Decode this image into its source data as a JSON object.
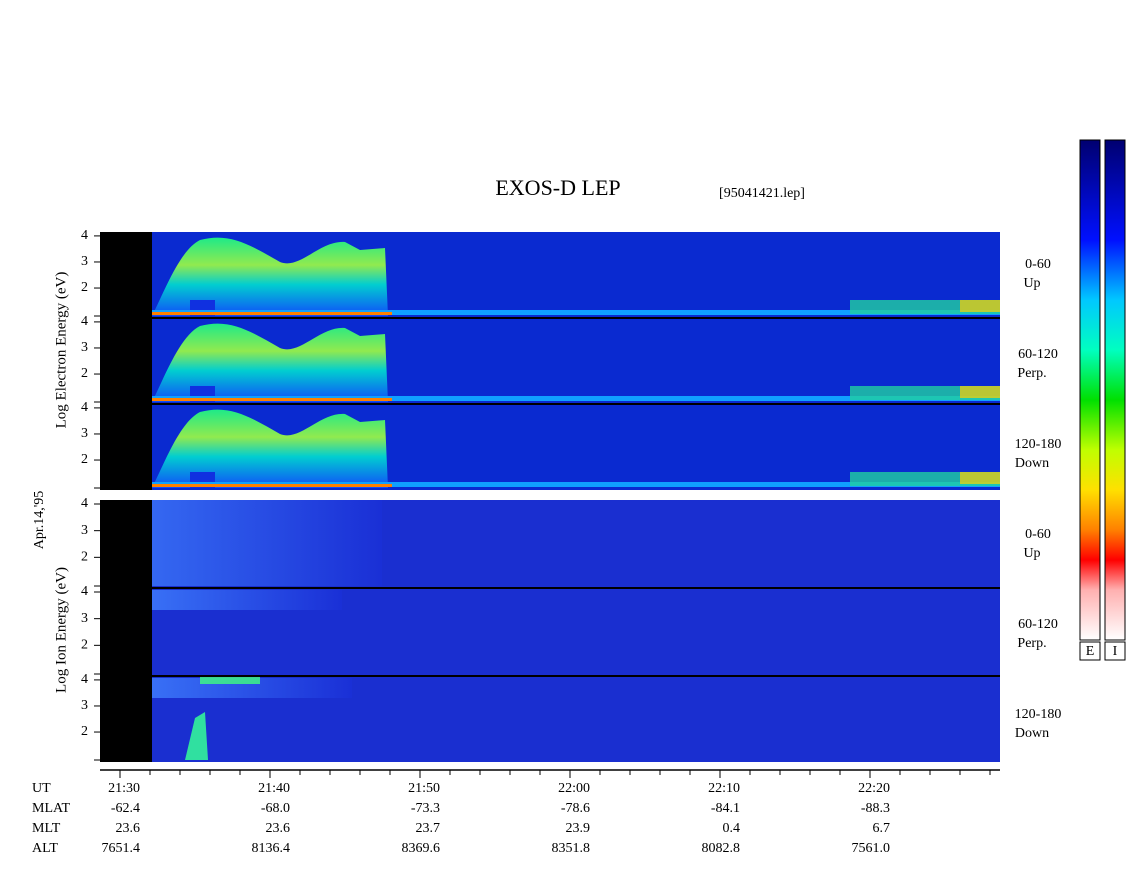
{
  "title": "EXOS-D LEP",
  "file": "[95041421.lep]",
  "date": "Apr.14,'95",
  "electron": {
    "axis_label": "Log Electron Energy (eV)",
    "channels": [
      {
        "pitch": "0-60",
        "dir": "Up"
      },
      {
        "pitch": "60-120",
        "dir": "Perp."
      },
      {
        "pitch": "120-180",
        "dir": "Down"
      }
    ]
  },
  "ion": {
    "axis_label": "Log Ion Energy (eV)",
    "channels": [
      {
        "pitch": "0-60",
        "dir": "Up"
      },
      {
        "pitch": "60-120",
        "dir": "Perp."
      },
      {
        "pitch": "120-180",
        "dir": "Down"
      }
    ]
  },
  "energy_axis": {
    "ylim": [
      0.85,
      4.15
    ],
    "yticks": [
      2,
      3,
      4
    ]
  },
  "orbit": {
    "row_labels": [
      "UT",
      "MLAT",
      "MLT",
      "ALT"
    ],
    "columns": [
      [
        "21:30",
        "-62.4",
        "23.6",
        "7651.4"
      ],
      [
        "21:40",
        "-68.0",
        "23.6",
        "8136.4"
      ],
      [
        "21:50",
        "-73.3",
        "23.7",
        "8369.6"
      ],
      [
        "22:00",
        "-78.6",
        "23.9",
        "8351.8"
      ],
      [
        "22:10",
        "-84.1",
        "0.4",
        "8082.8"
      ],
      [
        "22:20",
        "-88.3",
        "6.7",
        "7561.0"
      ]
    ]
  },
  "colorbar_labels": [
    "E",
    "I"
  ]
}
